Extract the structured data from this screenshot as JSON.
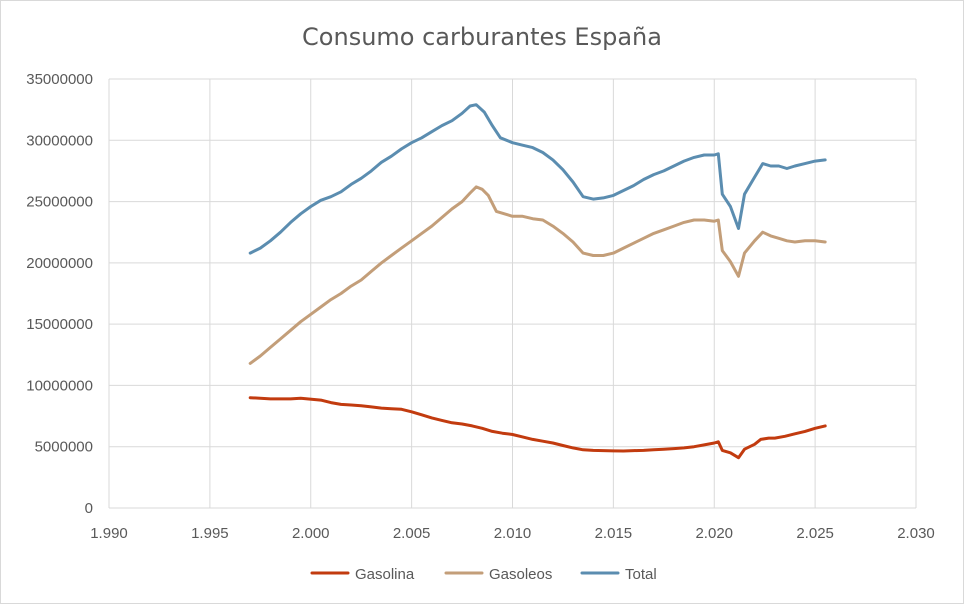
{
  "chart_data": {
    "type": "line",
    "title": "Consumo carburantes España",
    "xlabel": "",
    "ylabel": "",
    "xlim": [
      1990,
      2030
    ],
    "ylim": [
      0,
      35000000
    ],
    "x_ticks": [
      1990,
      1995,
      2000,
      2005,
      2010,
      2015,
      2020,
      2025,
      2030
    ],
    "x_tick_labels": [
      "1.990",
      "1.995",
      "2.000",
      "2.005",
      "2.010",
      "2.015",
      "2.020",
      "2.025",
      "2.030"
    ],
    "y_ticks": [
      0,
      5000000,
      10000000,
      15000000,
      20000000,
      25000000,
      30000000,
      35000000
    ],
    "y_tick_labels": [
      "0",
      "5000000",
      "10000000",
      "15000000",
      "20000000",
      "25000000",
      "30000000",
      "35000000"
    ],
    "grid": true,
    "legend_position": "bottom",
    "series": [
      {
        "name": "Gasolina",
        "color": "#c23b0f",
        "points": [
          [
            1997.0,
            9000000
          ],
          [
            1998.0,
            8900000
          ],
          [
            1999.0,
            8900000
          ],
          [
            1999.5,
            8950000
          ],
          [
            2000.5,
            8800000
          ],
          [
            2001.0,
            8600000
          ],
          [
            2001.5,
            8450000
          ],
          [
            2002.0,
            8400000
          ],
          [
            2002.5,
            8350000
          ],
          [
            2003.0,
            8250000
          ],
          [
            2003.5,
            8150000
          ],
          [
            2004.0,
            8100000
          ],
          [
            2004.5,
            8050000
          ],
          [
            2005.0,
            7850000
          ],
          [
            2005.5,
            7600000
          ],
          [
            2006.0,
            7350000
          ],
          [
            2006.5,
            7150000
          ],
          [
            2007.0,
            6950000
          ],
          [
            2007.5,
            6850000
          ],
          [
            2008.0,
            6700000
          ],
          [
            2008.5,
            6500000
          ],
          [
            2009.0,
            6250000
          ],
          [
            2009.5,
            6100000
          ],
          [
            2010.0,
            6000000
          ],
          [
            2010.5,
            5800000
          ],
          [
            2011.0,
            5600000
          ],
          [
            2011.5,
            5450000
          ],
          [
            2012.0,
            5300000
          ],
          [
            2012.5,
            5100000
          ],
          [
            2013.0,
            4900000
          ],
          [
            2013.5,
            4750000
          ],
          [
            2014.0,
            4700000
          ],
          [
            2014.5,
            4680000
          ],
          [
            2015.0,
            4660000
          ],
          [
            2015.5,
            4650000
          ],
          [
            2016.0,
            4680000
          ],
          [
            2016.5,
            4700000
          ],
          [
            2017.0,
            4750000
          ],
          [
            2017.5,
            4800000
          ],
          [
            2018.0,
            4850000
          ],
          [
            2018.5,
            4900000
          ],
          [
            2019.0,
            5000000
          ],
          [
            2019.5,
            5150000
          ],
          [
            2020.0,
            5300000
          ],
          [
            2020.2,
            5400000
          ],
          [
            2020.4,
            4700000
          ],
          [
            2020.8,
            4500000
          ],
          [
            2021.2,
            4100000
          ],
          [
            2021.5,
            4800000
          ],
          [
            2022.0,
            5200000
          ],
          [
            2022.3,
            5600000
          ],
          [
            2022.7,
            5700000
          ],
          [
            2023.0,
            5700000
          ],
          [
            2023.5,
            5850000
          ],
          [
            2024.0,
            6050000
          ],
          [
            2024.5,
            6250000
          ],
          [
            2025.0,
            6500000
          ],
          [
            2025.5,
            6700000
          ]
        ]
      },
      {
        "name": "Gasoleos",
        "color": "#c39e79",
        "points": [
          [
            1997.0,
            11800000
          ],
          [
            1997.5,
            12400000
          ],
          [
            1998.0,
            13100000
          ],
          [
            1998.5,
            13800000
          ],
          [
            1999.0,
            14500000
          ],
          [
            1999.5,
            15200000
          ],
          [
            2000.0,
            15800000
          ],
          [
            2000.5,
            16400000
          ],
          [
            2001.0,
            17000000
          ],
          [
            2001.5,
            17500000
          ],
          [
            2002.0,
            18100000
          ],
          [
            2002.5,
            18600000
          ],
          [
            2003.0,
            19300000
          ],
          [
            2003.5,
            20000000
          ],
          [
            2004.0,
            20600000
          ],
          [
            2004.5,
            21200000
          ],
          [
            2005.0,
            21800000
          ],
          [
            2005.5,
            22400000
          ],
          [
            2006.0,
            23000000
          ],
          [
            2006.5,
            23700000
          ],
          [
            2007.0,
            24400000
          ],
          [
            2007.5,
            25000000
          ],
          [
            2007.9,
            25700000
          ],
          [
            2008.2,
            26200000
          ],
          [
            2008.5,
            26000000
          ],
          [
            2008.8,
            25500000
          ],
          [
            2009.2,
            24200000
          ],
          [
            2009.6,
            24000000
          ],
          [
            2010.0,
            23800000
          ],
          [
            2010.5,
            23800000
          ],
          [
            2011.0,
            23600000
          ],
          [
            2011.5,
            23500000
          ],
          [
            2012.0,
            23000000
          ],
          [
            2012.5,
            22400000
          ],
          [
            2013.0,
            21700000
          ],
          [
            2013.5,
            20800000
          ],
          [
            2014.0,
            20600000
          ],
          [
            2014.5,
            20600000
          ],
          [
            2015.0,
            20800000
          ],
          [
            2015.5,
            21200000
          ],
          [
            2016.0,
            21600000
          ],
          [
            2016.5,
            22000000
          ],
          [
            2017.0,
            22400000
          ],
          [
            2017.5,
            22700000
          ],
          [
            2018.0,
            23000000
          ],
          [
            2018.5,
            23300000
          ],
          [
            2019.0,
            23500000
          ],
          [
            2019.5,
            23500000
          ],
          [
            2020.0,
            23400000
          ],
          [
            2020.2,
            23500000
          ],
          [
            2020.4,
            21000000
          ],
          [
            2020.8,
            20100000
          ],
          [
            2021.2,
            18900000
          ],
          [
            2021.5,
            20800000
          ],
          [
            2022.0,
            21800000
          ],
          [
            2022.4,
            22500000
          ],
          [
            2022.8,
            22200000
          ],
          [
            2023.2,
            22000000
          ],
          [
            2023.6,
            21800000
          ],
          [
            2024.0,
            21700000
          ],
          [
            2024.5,
            21800000
          ],
          [
            2025.0,
            21800000
          ],
          [
            2025.5,
            21700000
          ]
        ]
      },
      {
        "name": "Total",
        "color": "#5b8db0",
        "points": [
          [
            1997.0,
            20800000
          ],
          [
            1997.5,
            21200000
          ],
          [
            1998.0,
            21800000
          ],
          [
            1998.5,
            22500000
          ],
          [
            1999.0,
            23300000
          ],
          [
            1999.5,
            24000000
          ],
          [
            2000.0,
            24600000
          ],
          [
            2000.5,
            25100000
          ],
          [
            2001.0,
            25400000
          ],
          [
            2001.5,
            25800000
          ],
          [
            2002.0,
            26400000
          ],
          [
            2002.5,
            26900000
          ],
          [
            2003.0,
            27500000
          ],
          [
            2003.5,
            28200000
          ],
          [
            2004.0,
            28700000
          ],
          [
            2004.5,
            29300000
          ],
          [
            2005.0,
            29800000
          ],
          [
            2005.5,
            30200000
          ],
          [
            2006.0,
            30700000
          ],
          [
            2006.5,
            31200000
          ],
          [
            2007.0,
            31600000
          ],
          [
            2007.5,
            32200000
          ],
          [
            2007.9,
            32800000
          ],
          [
            2008.2,
            32900000
          ],
          [
            2008.6,
            32300000
          ],
          [
            2009.0,
            31200000
          ],
          [
            2009.4,
            30200000
          ],
          [
            2010.0,
            29800000
          ],
          [
            2010.5,
            29600000
          ],
          [
            2011.0,
            29400000
          ],
          [
            2011.5,
            29000000
          ],
          [
            2012.0,
            28400000
          ],
          [
            2012.5,
            27600000
          ],
          [
            2013.0,
            26600000
          ],
          [
            2013.5,
            25400000
          ],
          [
            2014.0,
            25200000
          ],
          [
            2014.5,
            25300000
          ],
          [
            2015.0,
            25500000
          ],
          [
            2015.5,
            25900000
          ],
          [
            2016.0,
            26300000
          ],
          [
            2016.5,
            26800000
          ],
          [
            2017.0,
            27200000
          ],
          [
            2017.5,
            27500000
          ],
          [
            2018.0,
            27900000
          ],
          [
            2018.5,
            28300000
          ],
          [
            2019.0,
            28600000
          ],
          [
            2019.5,
            28800000
          ],
          [
            2020.0,
            28800000
          ],
          [
            2020.2,
            28900000
          ],
          [
            2020.4,
            25600000
          ],
          [
            2020.8,
            24600000
          ],
          [
            2021.2,
            22800000
          ],
          [
            2021.5,
            25600000
          ],
          [
            2022.0,
            27000000
          ],
          [
            2022.4,
            28100000
          ],
          [
            2022.8,
            27900000
          ],
          [
            2023.2,
            27900000
          ],
          [
            2023.6,
            27700000
          ],
          [
            2024.0,
            27900000
          ],
          [
            2024.5,
            28100000
          ],
          [
            2025.0,
            28300000
          ],
          [
            2025.5,
            28400000
          ]
        ]
      }
    ]
  }
}
